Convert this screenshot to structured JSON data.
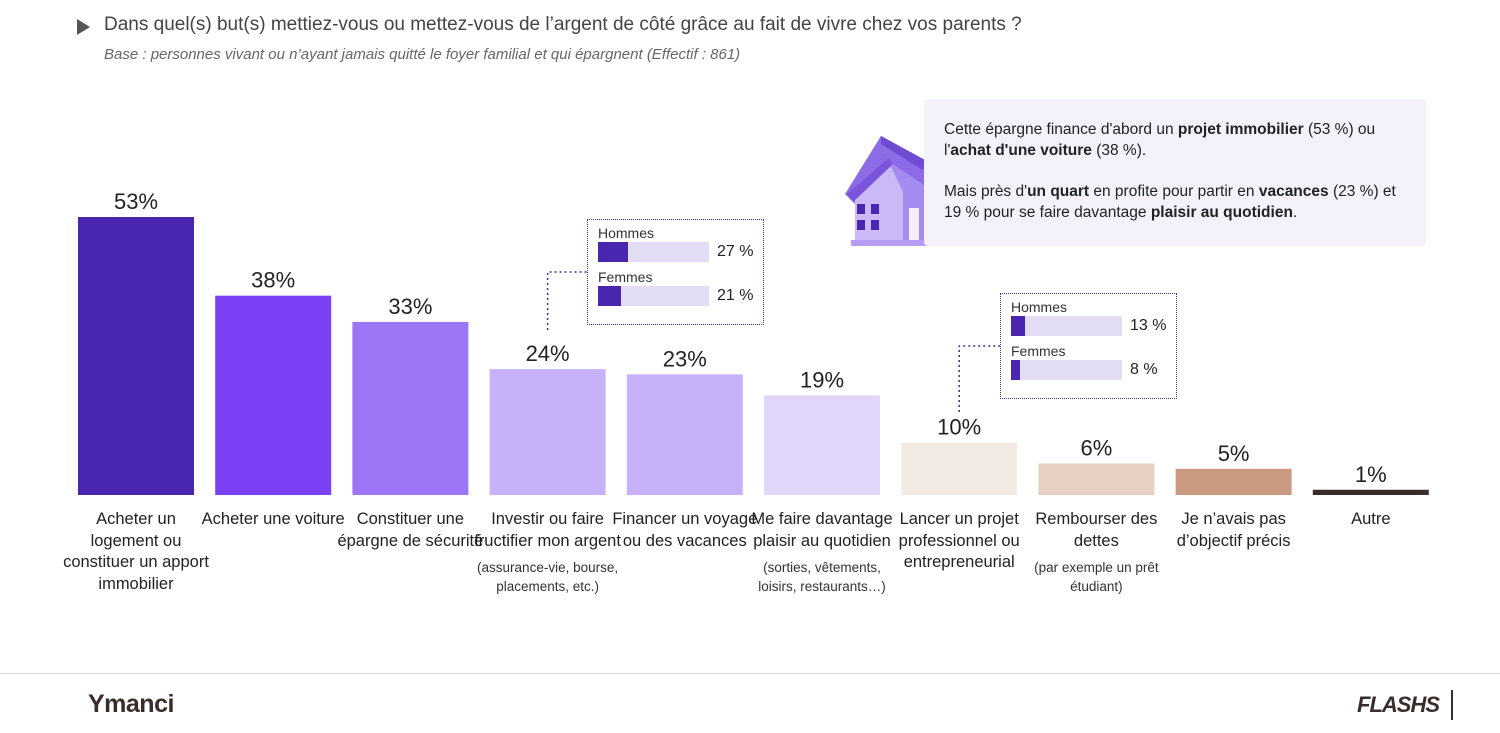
{
  "header": {
    "title": "Dans quel(s) but(s) mettiez-vous ou mettez-vous de l’argent de côté grâce au fait de vivre chez vos parents ?",
    "subtitle": "Base : personnes vivant ou n’ayant jamais quitté le foyer familial et qui épargnent (Effectif : 861)"
  },
  "chart_data": {
    "type": "bar",
    "unit": "%",
    "ylim": [
      0,
      53
    ],
    "grid": false,
    "categories": [
      {
        "label": "Acheter un logement ou constituer un apport immobilier",
        "note": ""
      },
      {
        "label": "Acheter une voiture",
        "note": ""
      },
      {
        "label": "Constituer une épargne de sécurité",
        "note": ""
      },
      {
        "label": "Investir ou faire fructifier mon argent",
        "note": "(assurance-vie, bourse, placements, etc.)"
      },
      {
        "label": "Financer un voyage ou des vacances",
        "note": ""
      },
      {
        "label": "Me faire davantage plaisir au quotidien",
        "note": "(sorties, vêtements, loisirs, restaurants…)"
      },
      {
        "label": "Lancer un projet professionnel ou entrepreneurial",
        "note": ""
      },
      {
        "label": "Rembourser des dettes",
        "note": "(par exemple un prêt étudiant)"
      },
      {
        "label": "Je n’avais pas d’objectif précis",
        "note": ""
      },
      {
        "label": "Autre",
        "note": ""
      }
    ],
    "values": [
      53,
      38,
      33,
      24,
      23,
      19,
      10,
      6,
      5,
      1
    ],
    "value_labels": [
      "53%",
      "38%",
      "33%",
      "24%",
      "23%",
      "19%",
      "10%",
      "6%",
      "5%",
      "1%"
    ],
    "colors": [
      "#4a26b0",
      "#7b41f5",
      "#9d76f7",
      "#c7b1f8",
      "#c7b1f8",
      "#e1d6fb",
      "#f3ebe3",
      "#e8d0c2",
      "#c99a7f",
      "#3a2c2a"
    ],
    "gender_breakdowns": [
      {
        "category_index": 3,
        "rows": [
          {
            "label": "Hommes",
            "value": 27,
            "text": "27 %"
          },
          {
            "label": "Femmes",
            "value": 21,
            "text": "21 %"
          }
        ]
      },
      {
        "category_index": 6,
        "rows": [
          {
            "label": "Hommes",
            "value": 13,
            "text": "13 %"
          },
          {
            "label": "Femmes",
            "value": 8,
            "text": "8 %"
          }
        ]
      }
    ]
  },
  "callout": {
    "p1": [
      {
        "t": "Cette épargne finance d'abord un "
      },
      {
        "t": "projet immobilier",
        "b": true
      },
      {
        "t": " (53 %) ou l'"
      },
      {
        "t": "achat d'une voiture",
        "b": true
      },
      {
        "t": " (38 %)."
      }
    ],
    "p2": [
      {
        "t": "Mais près d'"
      },
      {
        "t": "un quart",
        "b": true
      },
      {
        "t": " en profite pour partir en "
      },
      {
        "t": "vacances",
        "b": true
      },
      {
        "t": " (23 %) et 19 % pour se faire davantage "
      },
      {
        "t": "plaisir au quotidien",
        "b": true
      },
      {
        "t": "."
      }
    ]
  },
  "icons": {
    "house": "house-icon"
  },
  "footer": {
    "logo_left": "Ymanci",
    "logo_right": "FLASHS"
  }
}
